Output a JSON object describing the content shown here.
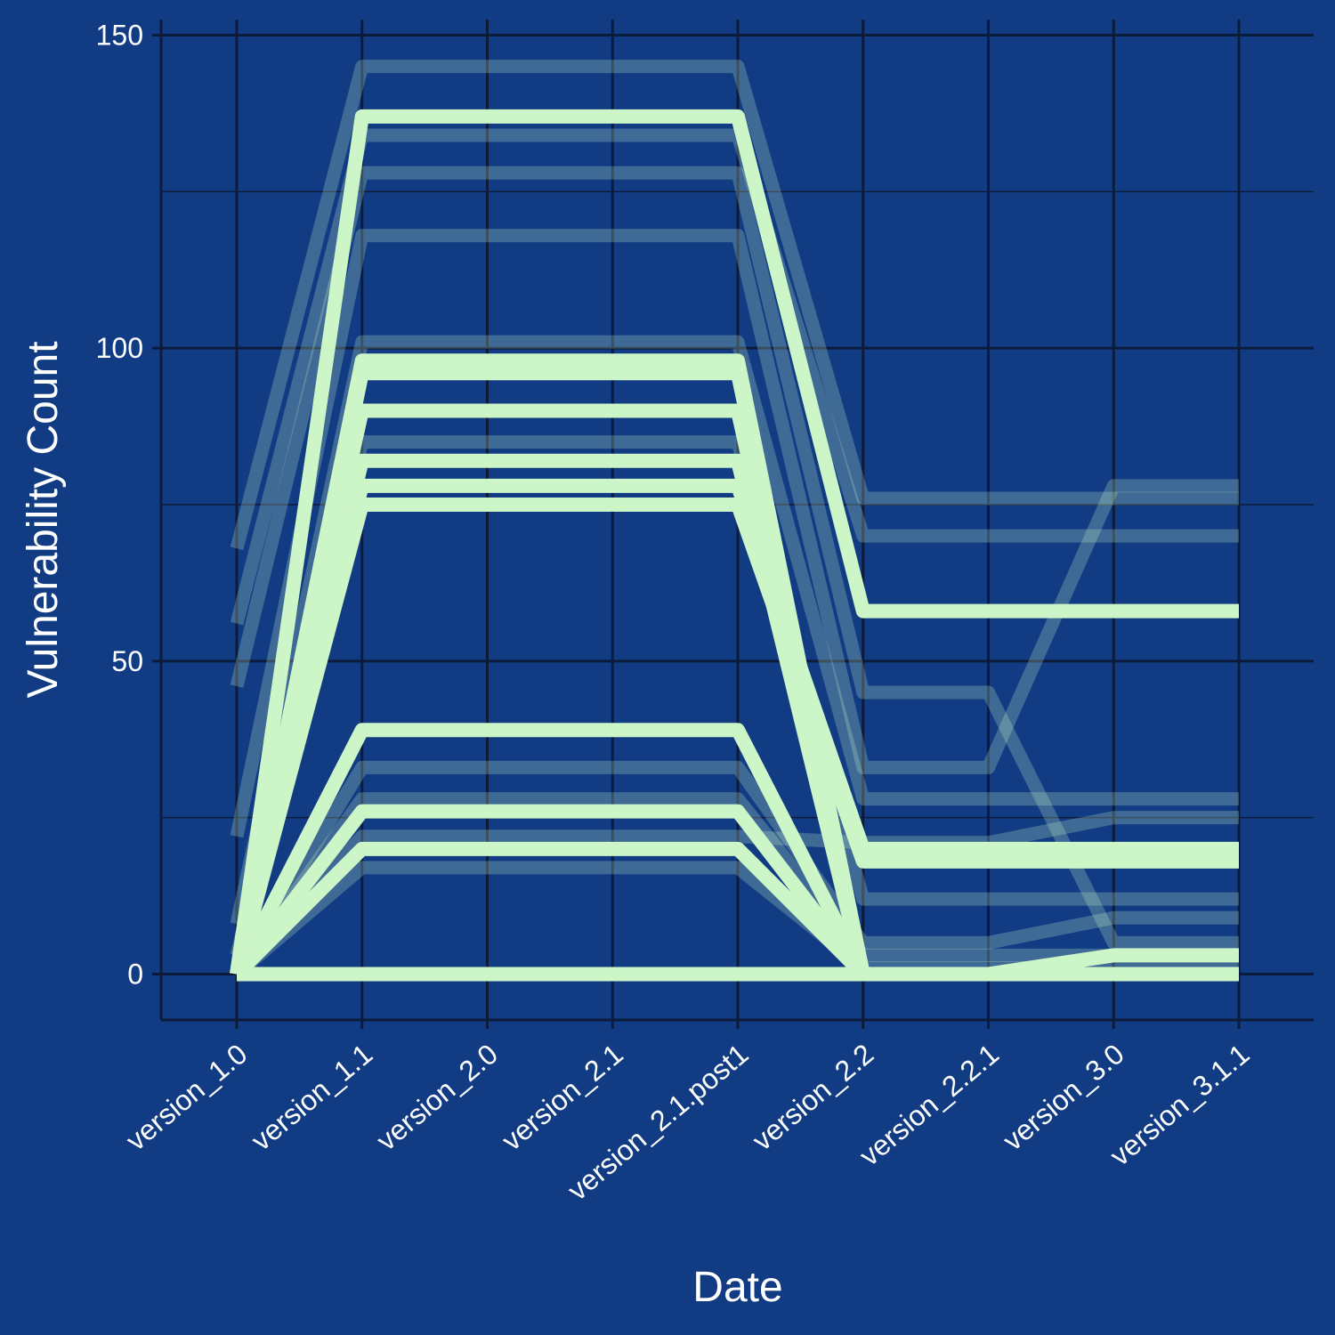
{
  "chart_data": {
    "type": "line",
    "title": "",
    "xlabel": "Date",
    "ylabel": "Vulnerability Count",
    "categories": [
      "version_1.0",
      "version_1.1",
      "version_2.0",
      "version_2.1",
      "version_2.1.post1",
      "version_2.2",
      "version_2.2.1",
      "version_3.0",
      "version_3.1.1"
    ],
    "ylim": [
      -7.5,
      151
    ],
    "yticks": [
      0,
      50,
      100,
      150
    ],
    "grid": true,
    "legend": "none",
    "colors": {
      "background": "#113c84",
      "line": "#ccf5c8",
      "grid": "#0d1b3a",
      "text": "#ffffff"
    },
    "series": [
      {
        "values": [
          0,
          137,
          137,
          137,
          137,
          58,
          58,
          58,
          58
        ],
        "opacity": 1
      },
      {
        "values": [
          0,
          98,
          98,
          98,
          98,
          0,
          0,
          0,
          0
        ],
        "opacity": 1
      },
      {
        "values": [
          0,
          96,
          96,
          96,
          96,
          0,
          0,
          0,
          0
        ],
        "opacity": 1
      },
      {
        "values": [
          0,
          90,
          90,
          90,
          90,
          0,
          0,
          0,
          0
        ],
        "opacity": 1
      },
      {
        "values": [
          0,
          82,
          82,
          82,
          82,
          0,
          0,
          0,
          0
        ],
        "opacity": 1
      },
      {
        "values": [
          0,
          78,
          78,
          78,
          78,
          20,
          20,
          20,
          20
        ],
        "opacity": 1
      },
      {
        "values": [
          0,
          75,
          75,
          75,
          75,
          18,
          18,
          18,
          18
        ],
        "opacity": 1
      },
      {
        "values": [
          0,
          39,
          39,
          39,
          39,
          0,
          0,
          0,
          0
        ],
        "opacity": 1
      },
      {
        "values": [
          0,
          26,
          26,
          26,
          26,
          0,
          0,
          0,
          0
        ],
        "opacity": 1
      },
      {
        "values": [
          0,
          20,
          20,
          20,
          20,
          0,
          0,
          3,
          3
        ],
        "opacity": 1
      },
      {
        "values": [
          0,
          0,
          0,
          0,
          0,
          0,
          0,
          0,
          0
        ],
        "opacity": 1
      },
      {
        "values": [
          68,
          145,
          145,
          145,
          145,
          76,
          76,
          76,
          76
        ],
        "opacity": 0.25
      },
      {
        "values": [
          56,
          134,
          134,
          134,
          134,
          70,
          70,
          70,
          70
        ],
        "opacity": 0.25
      },
      {
        "values": [
          46,
          128,
          128,
          128,
          128,
          45,
          45,
          5,
          5
        ],
        "opacity": 0.25
      },
      {
        "values": [
          22,
          118,
          118,
          118,
          118,
          33,
          33,
          78,
          78
        ],
        "opacity": 0.25
      },
      {
        "values": [
          8,
          101,
          101,
          101,
          101,
          28,
          28,
          28,
          28
        ],
        "opacity": 0.25
      },
      {
        "values": [
          3,
          85,
          85,
          85,
          85,
          12,
          12,
          12,
          12
        ],
        "opacity": 0.25
      },
      {
        "values": [
          0,
          33,
          33,
          33,
          33,
          5,
          5,
          9,
          9
        ],
        "opacity": 0.25
      },
      {
        "values": [
          0,
          28,
          28,
          28,
          28,
          3,
          3,
          3,
          3
        ],
        "opacity": 0.25
      },
      {
        "values": [
          0,
          22,
          22,
          22,
          22,
          21,
          21,
          25,
          25
        ],
        "opacity": 0.25
      },
      {
        "values": [
          0,
          17,
          17,
          17,
          17,
          1,
          1,
          1,
          1
        ],
        "opacity": 0.25
      }
    ]
  }
}
